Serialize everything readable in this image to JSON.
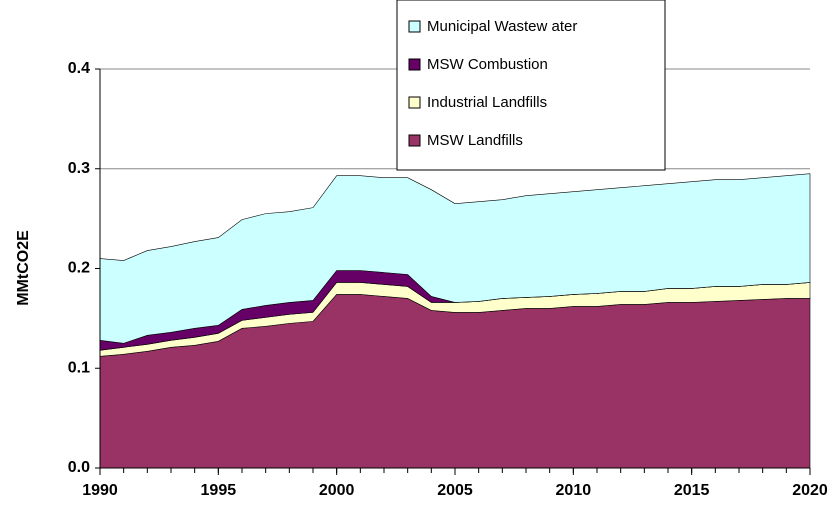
{
  "chart_data": {
    "type": "stacked-area",
    "y_label": "MMtCO2E",
    "x": [
      1990,
      1991,
      1992,
      1993,
      1994,
      1995,
      1996,
      1997,
      1998,
      1999,
      2000,
      2001,
      2002,
      2003,
      2004,
      2005,
      2006,
      2007,
      2008,
      2009,
      2010,
      2011,
      2012,
      2013,
      2014,
      2015,
      2016,
      2017,
      2018,
      2019,
      2020
    ],
    "series": [
      {
        "name": "MSW Landfills",
        "color": "#993366",
        "values": [
          0.112,
          0.114,
          0.117,
          0.121,
          0.123,
          0.127,
          0.14,
          0.142,
          0.145,
          0.147,
          0.174,
          0.174,
          0.172,
          0.17,
          0.158,
          0.156,
          0.156,
          0.158,
          0.16,
          0.16,
          0.162,
          0.162,
          0.164,
          0.164,
          0.166,
          0.166,
          0.167,
          0.168,
          0.169,
          0.17,
          0.17
        ]
      },
      {
        "name": "Industrial Landfills",
        "color": "#ffffcc",
        "values": [
          0.006,
          0.007,
          0.007,
          0.007,
          0.008,
          0.008,
          0.008,
          0.009,
          0.009,
          0.009,
          0.012,
          0.012,
          0.012,
          0.012,
          0.008,
          0.01,
          0.011,
          0.012,
          0.011,
          0.012,
          0.012,
          0.013,
          0.013,
          0.013,
          0.014,
          0.014,
          0.015,
          0.014,
          0.015,
          0.014,
          0.016
        ]
      },
      {
        "name": "MSW Combustion",
        "color": "#660066",
        "values": [
          0.01,
          0.004,
          0.009,
          0.008,
          0.009,
          0.008,
          0.011,
          0.012,
          0.012,
          0.012,
          0.012,
          0.012,
          0.012,
          0.012,
          0.006,
          0,
          0,
          0,
          0,
          0,
          0,
          0,
          0,
          0,
          0,
          0,
          0,
          0,
          0,
          0,
          0
        ]
      },
      {
        "name": "Municipal Wastew ater",
        "color": "#ccffff",
        "values": [
          0.082,
          0.083,
          0.085,
          0.086,
          0.087,
          0.088,
          0.09,
          0.092,
          0.091,
          0.093,
          0.095,
          0.095,
          0.095,
          0.097,
          0.107,
          0.099,
          0.1,
          0.099,
          0.102,
          0.103,
          0.103,
          0.104,
          0.104,
          0.106,
          0.105,
          0.107,
          0.107,
          0.107,
          0.107,
          0.109,
          0.109
        ]
      }
    ],
    "xlim": [
      1990,
      2020
    ],
    "xticks": [
      1990,
      1995,
      2000,
      2005,
      2010,
      2015,
      2020
    ],
    "ylim": [
      0,
      0.4
    ],
    "yticks": [
      {
        "value": 0,
        "label": "0.0"
      },
      0.1,
      0.2,
      0.3,
      0.4
    ],
    "grid": true
  }
}
